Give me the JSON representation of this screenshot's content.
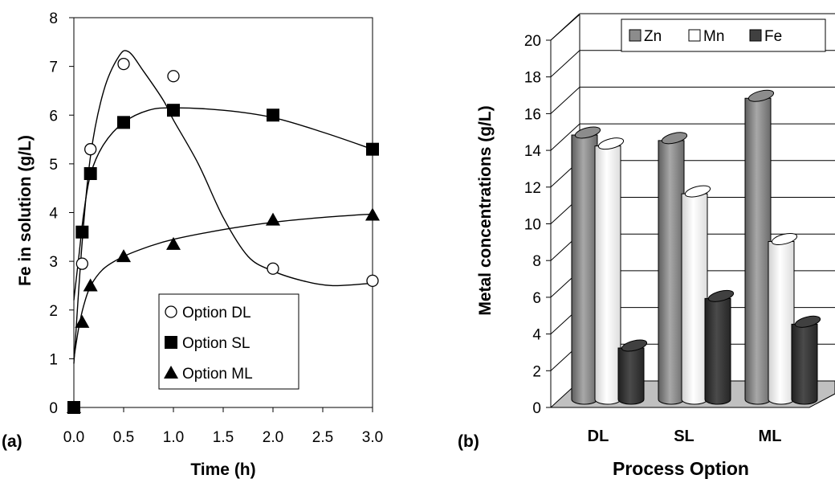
{
  "chart_data": [
    {
      "panel_label": "(a)",
      "type": "scatter",
      "xlabel": "Time (h)",
      "ylabel": "Fe in solution (g/L)",
      "xlim": [
        0,
        3
      ],
      "ylim": [
        0,
        8
      ],
      "xticks": [
        "0.0",
        "0.5",
        "1.0",
        "1.5",
        "2.0",
        "2.5",
        "3.0"
      ],
      "yticks": [
        "0",
        "1",
        "2",
        "3",
        "4",
        "5",
        "6",
        "7",
        "8"
      ],
      "legend_position": "bottom-right",
      "grid": false,
      "series": [
        {
          "name": "Option DL",
          "marker": "open-circle",
          "x": [
            0.0,
            0.0833,
            0.1667,
            0.5,
            1.0,
            2.0,
            3.0
          ],
          "y": [
            0,
            2.95,
            5.3,
            7.05,
            6.8,
            2.85,
            2.6
          ],
          "fit": [
            [
              0,
              0.9
            ],
            [
              0.08,
              3.3
            ],
            [
              0.17,
              5.2
            ],
            [
              0.3,
              6.5
            ],
            [
              0.45,
              7.2
            ],
            [
              0.55,
              7.3
            ],
            [
              0.7,
              6.9
            ],
            [
              0.9,
              6.3
            ],
            [
              1.0,
              5.9
            ],
            [
              1.25,
              5.0
            ],
            [
              1.5,
              3.9
            ],
            [
              1.75,
              3.1
            ],
            [
              2.0,
              2.8
            ],
            [
              2.3,
              2.6
            ],
            [
              2.6,
              2.5
            ],
            [
              3.0,
              2.55
            ]
          ]
        },
        {
          "name": "Option SL",
          "marker": "filled-square",
          "x": [
            0.0,
            0.0833,
            0.1667,
            0.5,
            1.0,
            2.0,
            3.0
          ],
          "y": [
            0,
            3.6,
            4.8,
            5.85,
            6.1,
            6.0,
            5.3
          ],
          "fit": [
            [
              0,
              2.2
            ],
            [
              0.05,
              3.1
            ],
            [
              0.1,
              4.0
            ],
            [
              0.17,
              4.8
            ],
            [
              0.3,
              5.4
            ],
            [
              0.5,
              5.85
            ],
            [
              0.75,
              6.1
            ],
            [
              1.0,
              6.15
            ],
            [
              1.5,
              6.1
            ],
            [
              2.0,
              5.95
            ],
            [
              2.5,
              5.65
            ],
            [
              3.0,
              5.3
            ]
          ]
        },
        {
          "name": "Option ML",
          "marker": "filled-triangle",
          "x": [
            0.0,
            0.0833,
            0.1667,
            0.5,
            1.0,
            2.0,
            3.0
          ],
          "y": [
            0,
            1.75,
            2.5,
            3.1,
            3.35,
            3.85,
            3.95
          ],
          "fit": [
            [
              0,
              1.0
            ],
            [
              0.05,
              1.65
            ],
            [
              0.1,
              2.1
            ],
            [
              0.17,
              2.5
            ],
            [
              0.3,
              2.85
            ],
            [
              0.5,
              3.1
            ],
            [
              0.75,
              3.3
            ],
            [
              1.0,
              3.45
            ],
            [
              1.5,
              3.65
            ],
            [
              2.0,
              3.8
            ],
            [
              2.5,
              3.9
            ],
            [
              3.0,
              3.97
            ]
          ]
        }
      ]
    },
    {
      "panel_label": "(b)",
      "type": "bar",
      "xlabel": "Process Option",
      "ylabel": "Metal concentrations (g/L)",
      "categories": [
        "DL",
        "SL",
        "ML"
      ],
      "ylim": [
        0,
        20
      ],
      "yticks": [
        "0",
        "2",
        "4",
        "6",
        "8",
        "10",
        "12",
        "14",
        "16",
        "18",
        "20"
      ],
      "legend_position": "top",
      "grid": true,
      "series": [
        {
          "name": "Zn",
          "color": "#8c8c8c",
          "values": [
            14.4,
            14.1,
            16.4
          ]
        },
        {
          "name": "Mn",
          "color": "#ffffff",
          "values": [
            13.8,
            11.2,
            8.6
          ]
        },
        {
          "name": "Fe",
          "color": "#404040",
          "values": [
            2.8,
            5.5,
            4.1
          ]
        }
      ]
    }
  ]
}
